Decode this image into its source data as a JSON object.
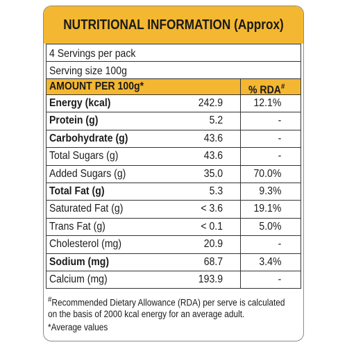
{
  "label": {
    "title": "NUTRITIONAL INFORMATION (Approx)",
    "servings": "4 Servings per pack",
    "serving_size": "Serving size 100g",
    "amount_header": "AMOUNT PER 100g*",
    "rda_header": "% RDA",
    "rda_header_mark": "#",
    "rows": [
      {
        "name": "Energy (kcal)",
        "amount": "242.9",
        "rda": "12.1%",
        "bold": true
      },
      {
        "name": "Protein (g)",
        "amount": "5.2",
        "rda": "-",
        "bold": true
      },
      {
        "name": "Carbohydrate (g)",
        "amount": "43.6",
        "rda": "-",
        "bold": true
      },
      {
        "name": "Total Sugars (g)",
        "amount": "43.6",
        "rda": "-",
        "bold": false
      },
      {
        "name": "Added Sugars (g)",
        "amount": "35.0",
        "rda": "70.0%",
        "bold": false
      },
      {
        "name": "Total Fat (g)",
        "amount": "5.3",
        "rda": "9.3%",
        "bold": true
      },
      {
        "name": "Saturated Fat (g)",
        "amount": "< 3.6",
        "rda": "19.1%",
        "bold": false
      },
      {
        "name": "Trans Fat (g)",
        "amount": "< 0.1",
        "rda": "5.0%",
        "bold": false
      },
      {
        "name": "Cholesterol (mg)",
        "amount": "20.9",
        "rda": "-",
        "bold": false
      },
      {
        "name": "Sodium (mg)",
        "amount": "68.7",
        "rda": "3.4%",
        "bold": true
      },
      {
        "name": "Calcium (mg)",
        "amount": "193.9",
        "rda": "-",
        "bold": false
      }
    ],
    "footnote_mark": "#",
    "footnotes": [
      "Recommended Dietary Allowance (RDA) per serve is calculated",
      "on the basis  of 2000 kcal energy for an average adult.",
      "*Average values"
    ]
  }
}
